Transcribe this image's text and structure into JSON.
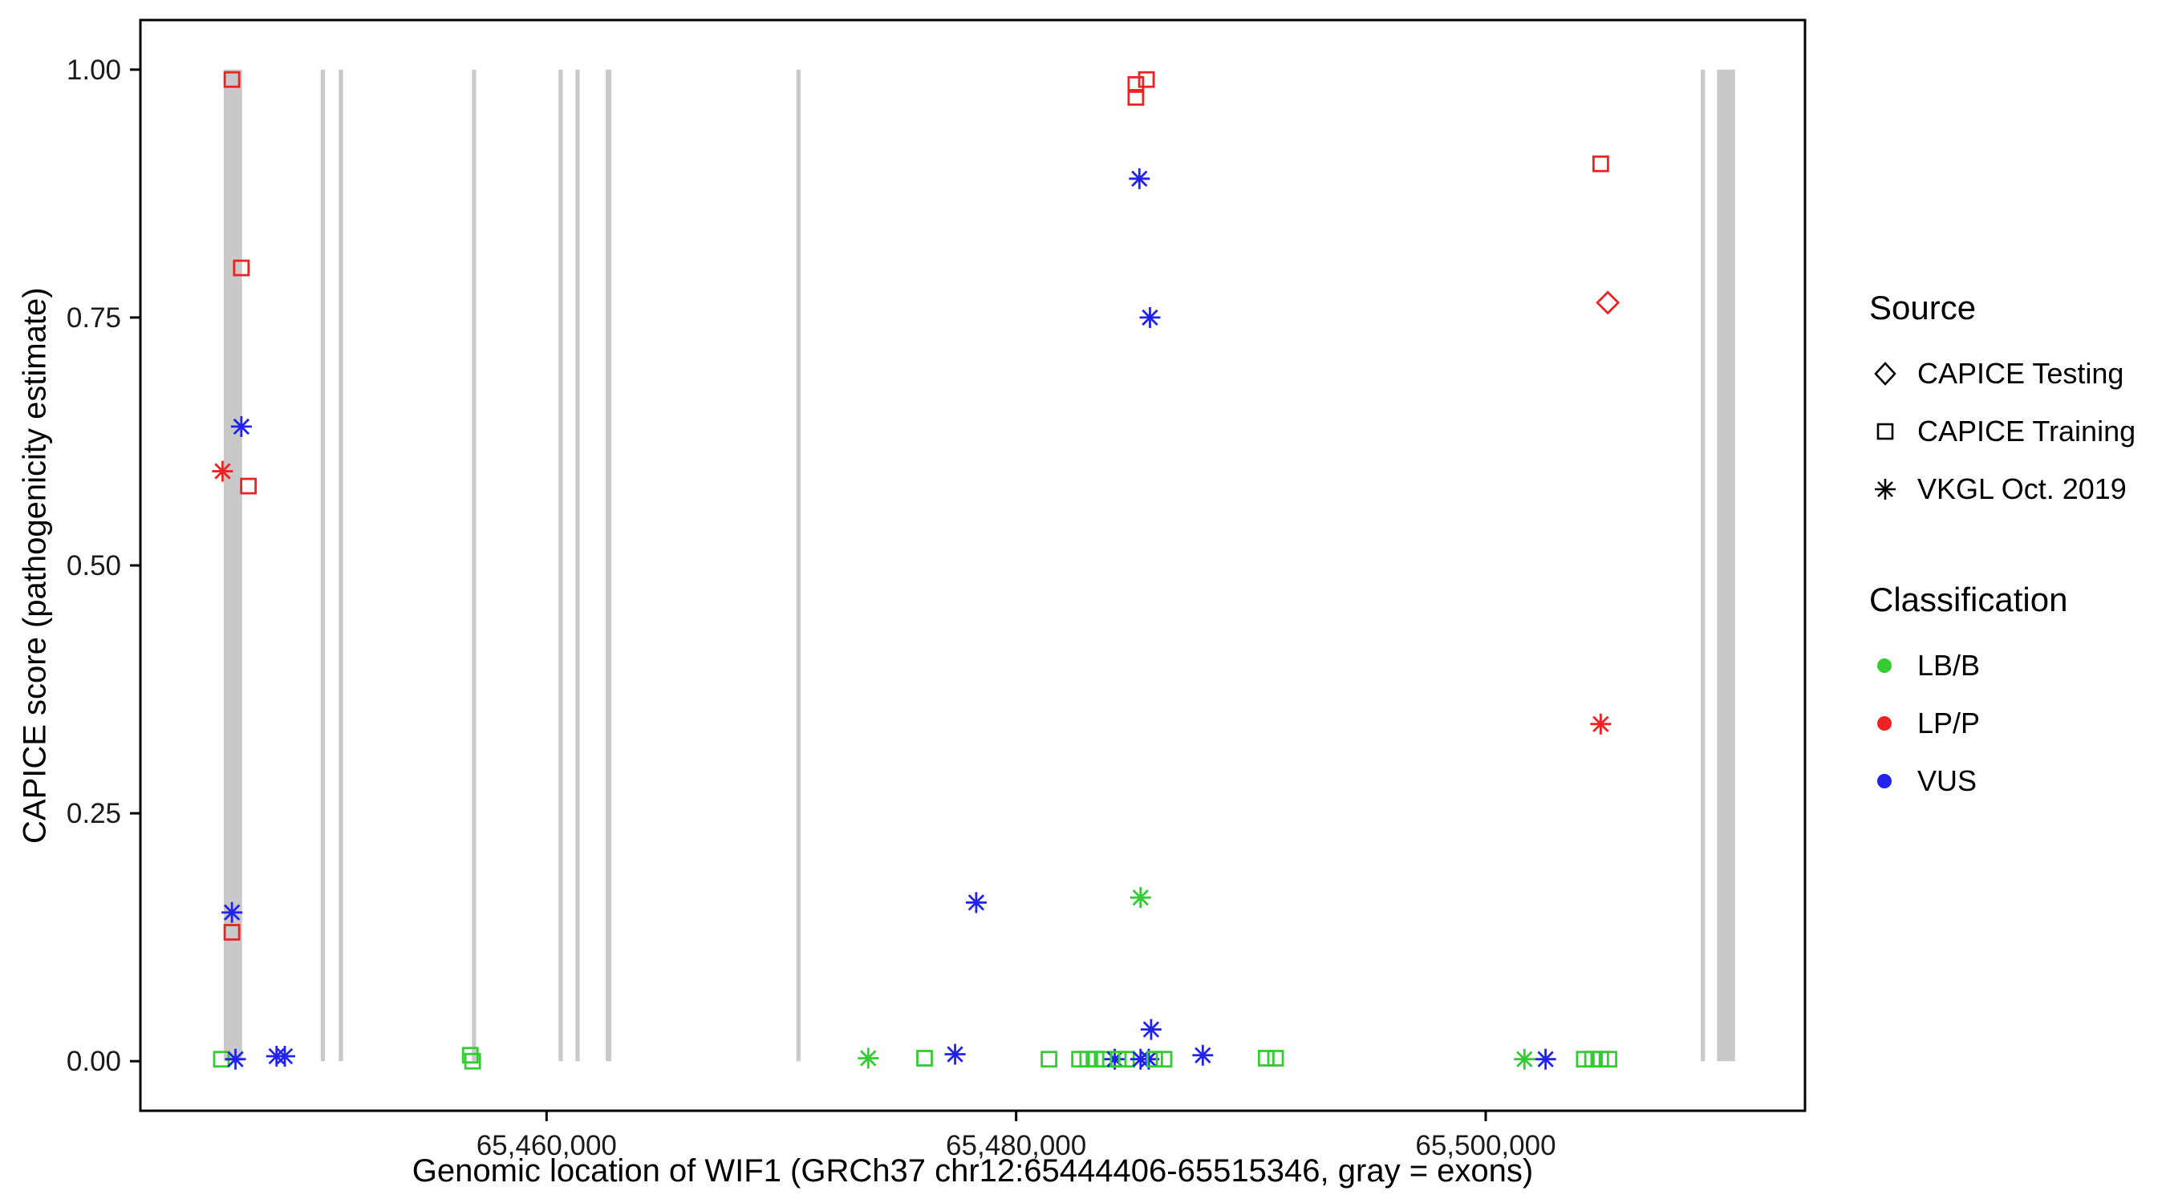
{
  "legend": {
    "source_title": "Source",
    "source_items": [
      {
        "label": "CAPICE Testing",
        "shape": "diamond"
      },
      {
        "label": "CAPICE Training",
        "shape": "square"
      },
      {
        "label": "VKGL Oct. 2019",
        "shape": "asterisk"
      }
    ],
    "classification_title": "Classification",
    "classification_items": [
      {
        "label": "LB/B",
        "color": "#33CC33"
      },
      {
        "label": "LP/P",
        "color": "#EE2222"
      },
      {
        "label": "VUS",
        "color": "#2222EE"
      }
    ]
  },
  "chart_data": {
    "type": "scatter",
    "title": "",
    "xlabel": "Genomic location of WIF1 (GRCh37 chr12:65444406-65515346, gray = exons)",
    "ylabel": "CAPICE score (pathogenicity estimate)",
    "x_range": [
      65442700,
      65513600
    ],
    "y_range": [
      -0.05,
      1.05
    ],
    "x_ticks": [
      65460000,
      65480000,
      65500000
    ],
    "x_tick_labels": [
      "65,460,000",
      "65,480,000",
      "65,500,000"
    ],
    "y_ticks": [
      0.0,
      0.25,
      0.5,
      0.75,
      1.0
    ],
    "y_tick_labels": [
      "0.00",
      "0.25",
      "0.50",
      "0.75",
      "1.00"
    ],
    "grid": false,
    "legend_position": "right",
    "exon_color": "#C9C9C9",
    "exons": [
      [
        65446250,
        65447030
      ],
      [
        65450380,
        65450560
      ],
      [
        65451150,
        65451330
      ],
      [
        65456820,
        65457000
      ],
      [
        65460510,
        65460690
      ],
      [
        65461230,
        65461410
      ],
      [
        65462520,
        65462760
      ],
      [
        65470640,
        65470820
      ],
      [
        65509160,
        65509340
      ],
      [
        65509850,
        65510620
      ]
    ],
    "source_shapes": {
      "CAPICE Testing": "diamond",
      "CAPICE Training": "square",
      "VKGL Oct. 2019": "asterisk"
    },
    "class_colors": {
      "LB/B": "#33CC33",
      "LP/P": "#EE2222",
      "VUS": "#2222EE"
    },
    "points": [
      {
        "x": 65446150,
        "y": 0.002,
        "source": "CAPICE Training",
        "classification": "LB/B"
      },
      {
        "x": 65446200,
        "y": 0.595,
        "source": "VKGL Oct. 2019",
        "classification": "LP/P"
      },
      {
        "x": 65446600,
        "y": 0.99,
        "source": "CAPICE Training",
        "classification": "LP/P"
      },
      {
        "x": 65446600,
        "y": 0.15,
        "source": "VKGL Oct. 2019",
        "classification": "VUS"
      },
      {
        "x": 65446600,
        "y": 0.13,
        "source": "CAPICE Training",
        "classification": "LP/P"
      },
      {
        "x": 65446750,
        "y": 0.002,
        "source": "VKGL Oct. 2019",
        "classification": "VUS"
      },
      {
        "x": 65447000,
        "y": 0.8,
        "source": "CAPICE Training",
        "classification": "LP/P"
      },
      {
        "x": 65447000,
        "y": 0.64,
        "source": "VKGL Oct. 2019",
        "classification": "VUS"
      },
      {
        "x": 65447300,
        "y": 0.58,
        "source": "CAPICE Training",
        "classification": "LP/P"
      },
      {
        "x": 65448500,
        "y": 0.005,
        "source": "VKGL Oct. 2019",
        "classification": "VUS"
      },
      {
        "x": 65448850,
        "y": 0.005,
        "source": "VKGL Oct. 2019",
        "classification": "VUS"
      },
      {
        "x": 65456750,
        "y": 0.006,
        "source": "CAPICE Training",
        "classification": "LB/B"
      },
      {
        "x": 65456850,
        "y": 0.0,
        "source": "CAPICE Training",
        "classification": "LB/B"
      },
      {
        "x": 65473700,
        "y": 0.003,
        "source": "VKGL Oct. 2019",
        "classification": "LB/B"
      },
      {
        "x": 65476100,
        "y": 0.003,
        "source": "CAPICE Training",
        "classification": "LB/B"
      },
      {
        "x": 65477400,
        "y": 0.007,
        "source": "VKGL Oct. 2019",
        "classification": "VUS"
      },
      {
        "x": 65478300,
        "y": 0.16,
        "source": "VKGL Oct. 2019",
        "classification": "VUS"
      },
      {
        "x": 65481400,
        "y": 0.002,
        "source": "CAPICE Training",
        "classification": "LB/B"
      },
      {
        "x": 65482700,
        "y": 0.002,
        "source": "CAPICE Training",
        "classification": "LB/B"
      },
      {
        "x": 65483050,
        "y": 0.002,
        "source": "CAPICE Training",
        "classification": "LB/B"
      },
      {
        "x": 65483400,
        "y": 0.002,
        "source": "CAPICE Training",
        "classification": "LB/B"
      },
      {
        "x": 65483750,
        "y": 0.002,
        "source": "CAPICE Training",
        "classification": "LB/B"
      },
      {
        "x": 65484200,
        "y": 0.002,
        "source": "VKGL Oct. 2019",
        "classification": "VUS"
      },
      {
        "x": 65484350,
        "y": 0.002,
        "source": "CAPICE Training",
        "classification": "LB/B"
      },
      {
        "x": 65484700,
        "y": 0.002,
        "source": "CAPICE Training",
        "classification": "LB/B"
      },
      {
        "x": 65485100,
        "y": 0.985,
        "source": "CAPICE Training",
        "classification": "LP/P"
      },
      {
        "x": 65485100,
        "y": 0.972,
        "source": "CAPICE Training",
        "classification": "LP/P"
      },
      {
        "x": 65485250,
        "y": 0.89,
        "source": "VKGL Oct. 2019",
        "classification": "VUS"
      },
      {
        "x": 65485300,
        "y": 0.165,
        "source": "VKGL Oct. 2019",
        "classification": "LB/B"
      },
      {
        "x": 65485300,
        "y": 0.002,
        "source": "VKGL Oct. 2019",
        "classification": "VUS"
      },
      {
        "x": 65485550,
        "y": 0.99,
        "source": "CAPICE Training",
        "classification": "LP/P"
      },
      {
        "x": 65485650,
        "y": 0.002,
        "source": "VKGL Oct. 2019",
        "classification": "VUS"
      },
      {
        "x": 65485700,
        "y": 0.75,
        "source": "VKGL Oct. 2019",
        "classification": "VUS"
      },
      {
        "x": 65485750,
        "y": 0.032,
        "source": "VKGL Oct. 2019",
        "classification": "VUS"
      },
      {
        "x": 65485900,
        "y": 0.002,
        "source": "CAPICE Training",
        "classification": "LB/B"
      },
      {
        "x": 65486300,
        "y": 0.002,
        "source": "CAPICE Training",
        "classification": "LB/B"
      },
      {
        "x": 65487950,
        "y": 0.006,
        "source": "VKGL Oct. 2019",
        "classification": "VUS"
      },
      {
        "x": 65490650,
        "y": 0.003,
        "source": "CAPICE Training",
        "classification": "LB/B"
      },
      {
        "x": 65491050,
        "y": 0.003,
        "source": "CAPICE Training",
        "classification": "LB/B"
      },
      {
        "x": 65501650,
        "y": 0.002,
        "source": "VKGL Oct. 2019",
        "classification": "LB/B"
      },
      {
        "x": 65502550,
        "y": 0.002,
        "source": "VKGL Oct. 2019",
        "classification": "VUS"
      },
      {
        "x": 65504200,
        "y": 0.002,
        "source": "CAPICE Training",
        "classification": "LB/B"
      },
      {
        "x": 65504550,
        "y": 0.002,
        "source": "CAPICE Training",
        "classification": "LB/B"
      },
      {
        "x": 65504900,
        "y": 0.905,
        "source": "CAPICE Training",
        "classification": "LP/P"
      },
      {
        "x": 65504900,
        "y": 0.34,
        "source": "VKGL Oct. 2019",
        "classification": "LP/P"
      },
      {
        "x": 65504900,
        "y": 0.002,
        "source": "CAPICE Training",
        "classification": "LB/B"
      },
      {
        "x": 65505200,
        "y": 0.765,
        "source": "CAPICE Testing",
        "classification": "LP/P"
      },
      {
        "x": 65505250,
        "y": 0.002,
        "source": "CAPICE Training",
        "classification": "LB/B"
      }
    ]
  }
}
